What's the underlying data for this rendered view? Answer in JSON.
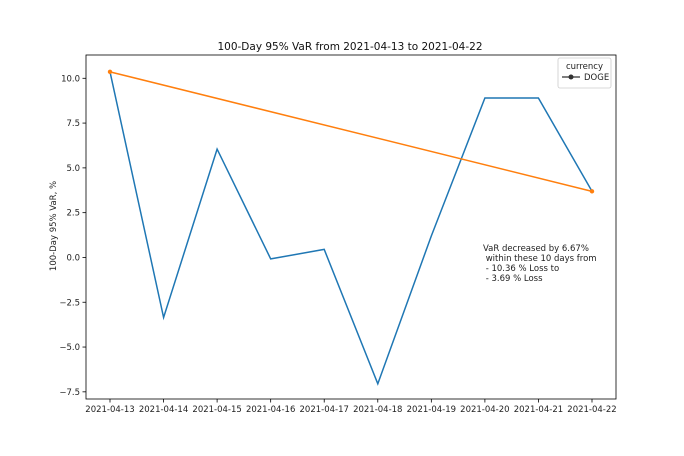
{
  "chart_data": {
    "type": "line",
    "title": "100-Day 95% VaR from 2021-04-13 to 2021-04-22",
    "xlabel": "",
    "ylabel": "100-Day 95% VaR, %",
    "categories": [
      "2021-04-13",
      "2021-04-14",
      "2021-04-15",
      "2021-04-16",
      "2021-04-17",
      "2021-04-18",
      "2021-04-19",
      "2021-04-20",
      "2021-04-21",
      "2021-04-22"
    ],
    "series": [
      {
        "name": "DOGE",
        "color": "#1f77b4",
        "values": [
          10.36,
          -3.35,
          6.05,
          -0.08,
          0.45,
          -7.05,
          1.2,
          8.9,
          8.9,
          3.69
        ]
      }
    ],
    "trend_line": {
      "color": "#ff7f0e",
      "start": {
        "x": "2021-04-13",
        "y": 10.36
      },
      "end": {
        "x": "2021-04-22",
        "y": 3.69
      }
    },
    "yticks": [
      10.0,
      7.5,
      5.0,
      2.5,
      0.0,
      -2.5,
      -5.0,
      -7.5
    ],
    "ytick_labels": [
      "10.0",
      "7.5",
      "5.0",
      "2.5",
      "0.0",
      "−2.5",
      "−5.0",
      "−7.5"
    ],
    "ylim": [
      -7.9,
      11.3
    ],
    "grid": false,
    "legend": {
      "title": "currency",
      "entries": [
        "DOGE"
      ],
      "placement": "top-right"
    },
    "annotation": {
      "lines": [
        "VaR decreased by 6.67%",
        " within these 10 days from",
        " - 10.36 % Loss to",
        " - 3.69 % Loss"
      ]
    }
  }
}
